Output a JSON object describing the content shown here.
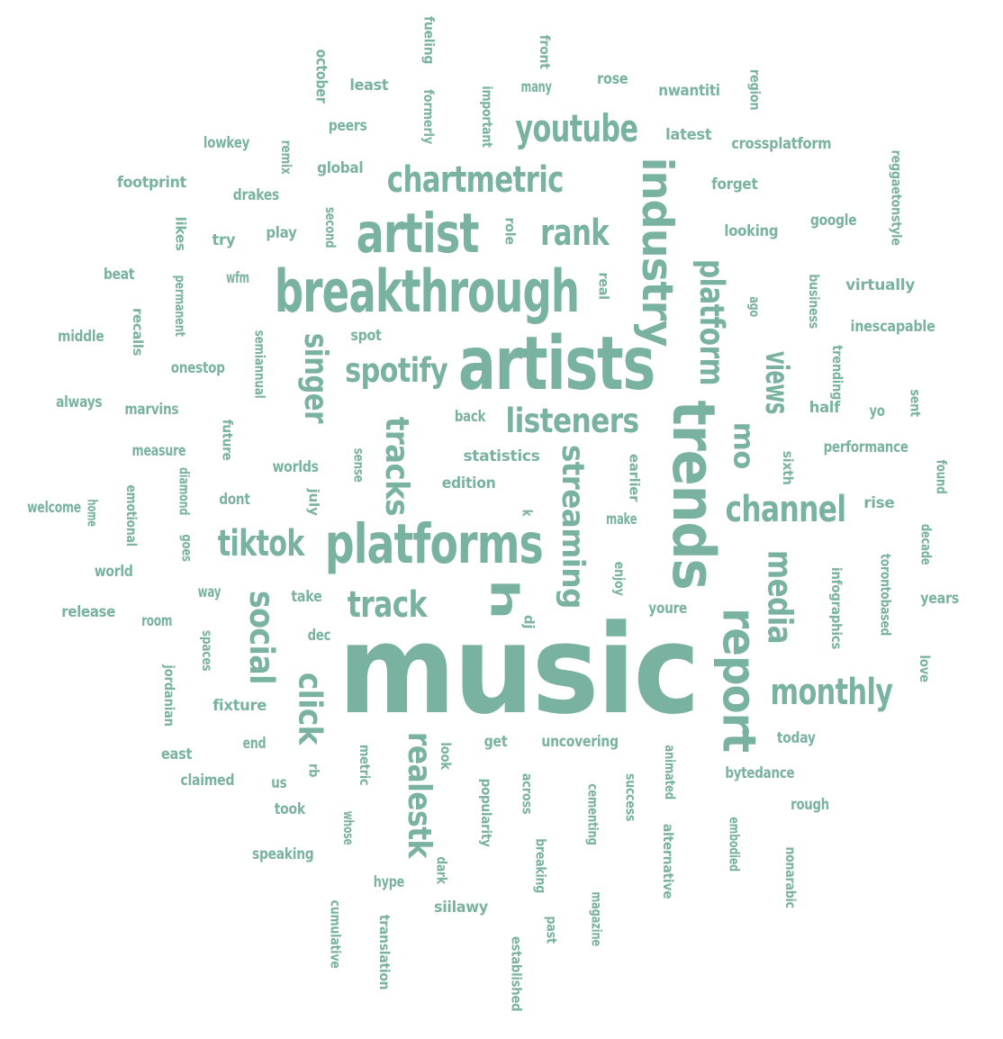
{
  "wordcloud": {
    "color": "#7ab2a1",
    "words": [
      {
        "text": "music",
        "weight": 150,
        "orientation": "horizontal"
      },
      {
        "text": "artists",
        "weight": 78,
        "orientation": "horizontal"
      },
      {
        "text": "breakthrough",
        "weight": 62,
        "orientation": "horizontal"
      },
      {
        "text": "trends",
        "weight": 62,
        "orientation": "vertical"
      },
      {
        "text": "platforms",
        "weight": 58,
        "orientation": "horizontal"
      },
      {
        "text": "artist",
        "weight": 58,
        "orientation": "horizontal"
      },
      {
        "text": "industry",
        "weight": 55,
        "orientation": "vertical"
      },
      {
        "text": "report",
        "weight": 48,
        "orientation": "vertical"
      },
      {
        "text": "streaming",
        "weight": 42,
        "orientation": "vertical"
      },
      {
        "text": "h",
        "weight": 42,
        "orientation": "vertical"
      },
      {
        "text": "realestk",
        "weight": 40,
        "orientation": "vertical"
      },
      {
        "text": "youtube",
        "weight": 40,
        "orientation": "horizontal"
      },
      {
        "text": "tracks",
        "weight": 40,
        "orientation": "vertical"
      },
      {
        "text": "chartmetric",
        "weight": 38,
        "orientation": "horizontal"
      },
      {
        "text": "channel",
        "weight": 38,
        "orientation": "horizontal"
      },
      {
        "text": "monthly",
        "weight": 38,
        "orientation": "horizontal"
      },
      {
        "text": "tiktok",
        "weight": 38,
        "orientation": "horizontal"
      },
      {
        "text": "track",
        "weight": 38,
        "orientation": "horizontal"
      },
      {
        "text": "media",
        "weight": 38,
        "orientation": "vertical"
      },
      {
        "text": "platform",
        "weight": 36,
        "orientation": "vertical"
      },
      {
        "text": "rank",
        "weight": 36,
        "orientation": "horizontal"
      },
      {
        "text": "listeners",
        "weight": 36,
        "orientation": "horizontal"
      },
      {
        "text": "spotify",
        "weight": 36,
        "orientation": "horizontal"
      },
      {
        "text": "singer",
        "weight": 36,
        "orientation": "vertical"
      },
      {
        "text": "social",
        "weight": 36,
        "orientation": "vertical"
      },
      {
        "text": "click",
        "weight": 36,
        "orientation": "vertical"
      },
      {
        "text": "views",
        "weight": 36,
        "orientation": "vertical"
      },
      {
        "text": "mo",
        "weight": 32,
        "orientation": "vertical"
      },
      {
        "text": "october",
        "weight": 18,
        "orientation": "vertical"
      },
      {
        "text": "fueling",
        "weight": 16,
        "orientation": "vertical"
      },
      {
        "text": "front",
        "weight": 16,
        "orientation": "vertical"
      },
      {
        "text": "least",
        "weight": 18,
        "orientation": "horizontal"
      },
      {
        "text": "formerly",
        "weight": 16,
        "orientation": "vertical"
      },
      {
        "text": "important",
        "weight": 16,
        "orientation": "vertical"
      },
      {
        "text": "many",
        "weight": 18,
        "orientation": "horizontal"
      },
      {
        "text": "rose",
        "weight": 18,
        "orientation": "horizontal"
      },
      {
        "text": "nwantiti",
        "weight": 18,
        "orientation": "horizontal"
      },
      {
        "text": "region",
        "weight": 16,
        "orientation": "vertical"
      },
      {
        "text": "peers",
        "weight": 18,
        "orientation": "horizontal"
      },
      {
        "text": "latest",
        "weight": 18,
        "orientation": "horizontal"
      },
      {
        "text": "lowkey",
        "weight": 18,
        "orientation": "horizontal"
      },
      {
        "text": "remix",
        "weight": 16,
        "orientation": "vertical"
      },
      {
        "text": "crossplatform",
        "weight": 18,
        "orientation": "horizontal"
      },
      {
        "text": "reggaetonstyle",
        "weight": 16,
        "orientation": "vertical"
      },
      {
        "text": "global",
        "weight": 18,
        "orientation": "horizontal"
      },
      {
        "text": "footprint",
        "weight": 18,
        "orientation": "horizontal"
      },
      {
        "text": "forget",
        "weight": 18,
        "orientation": "horizontal"
      },
      {
        "text": "drakes",
        "weight": 18,
        "orientation": "horizontal"
      },
      {
        "text": "second",
        "weight": 16,
        "orientation": "vertical"
      },
      {
        "text": "role",
        "weight": 16,
        "orientation": "vertical"
      },
      {
        "text": "google",
        "weight": 18,
        "orientation": "horizontal"
      },
      {
        "text": "likes",
        "weight": 16,
        "orientation": "vertical"
      },
      {
        "text": "try",
        "weight": 18,
        "orientation": "horizontal"
      },
      {
        "text": "play",
        "weight": 18,
        "orientation": "horizontal"
      },
      {
        "text": "looking",
        "weight": 18,
        "orientation": "horizontal"
      },
      {
        "text": "beat",
        "weight": 18,
        "orientation": "horizontal"
      },
      {
        "text": "permanent",
        "weight": 16,
        "orientation": "vertical"
      },
      {
        "text": "wfm",
        "weight": 18,
        "orientation": "horizontal"
      },
      {
        "text": "real",
        "weight": 16,
        "orientation": "vertical"
      },
      {
        "text": "business",
        "weight": 16,
        "orientation": "vertical"
      },
      {
        "text": "virtually",
        "weight": 18,
        "orientation": "horizontal"
      },
      {
        "text": "recalls",
        "weight": 16,
        "orientation": "vertical"
      },
      {
        "text": "ago",
        "weight": 16,
        "orientation": "vertical"
      },
      {
        "text": "middle",
        "weight": 18,
        "orientation": "horizontal"
      },
      {
        "text": "semiannual",
        "weight": 16,
        "orientation": "vertical"
      },
      {
        "text": "spot",
        "weight": 18,
        "orientation": "horizontal"
      },
      {
        "text": "inescapable",
        "weight": 18,
        "orientation": "horizontal"
      },
      {
        "text": "onestop",
        "weight": 18,
        "orientation": "horizontal"
      },
      {
        "text": "always",
        "weight": 18,
        "orientation": "horizontal"
      },
      {
        "text": "trending",
        "weight": 16,
        "orientation": "vertical"
      },
      {
        "text": "marvins",
        "weight": 18,
        "orientation": "horizontal"
      },
      {
        "text": "back",
        "weight": 18,
        "orientation": "horizontal"
      },
      {
        "text": "half",
        "weight": 18,
        "orientation": "horizontal"
      },
      {
        "text": "yo",
        "weight": 18,
        "orientation": "horizontal"
      },
      {
        "text": "sent",
        "weight": 16,
        "orientation": "vertical"
      },
      {
        "text": "future",
        "weight": 16,
        "orientation": "vertical"
      },
      {
        "text": "measure",
        "weight": 18,
        "orientation": "horizontal"
      },
      {
        "text": "statistics",
        "weight": 18,
        "orientation": "horizontal"
      },
      {
        "text": "performance",
        "weight": 18,
        "orientation": "horizontal"
      },
      {
        "text": "worlds",
        "weight": 18,
        "orientation": "horizontal"
      },
      {
        "text": "sense",
        "weight": 16,
        "orientation": "vertical"
      },
      {
        "text": "sixth",
        "weight": 16,
        "orientation": "vertical"
      },
      {
        "text": "earlier",
        "weight": 16,
        "orientation": "vertical"
      },
      {
        "text": "found",
        "weight": 16,
        "orientation": "vertical"
      },
      {
        "text": "welcome",
        "weight": 18,
        "orientation": "horizontal"
      },
      {
        "text": "home",
        "weight": 16,
        "orientation": "vertical"
      },
      {
        "text": "emotional",
        "weight": 16,
        "orientation": "vertical"
      },
      {
        "text": "diamond",
        "weight": 16,
        "orientation": "vertical"
      },
      {
        "text": "dont",
        "weight": 18,
        "orientation": "horizontal"
      },
      {
        "text": "july",
        "weight": 16,
        "orientation": "vertical"
      },
      {
        "text": "edition",
        "weight": 18,
        "orientation": "horizontal"
      },
      {
        "text": "k",
        "weight": 16,
        "orientation": "vertical"
      },
      {
        "text": "make",
        "weight": 18,
        "orientation": "horizontal"
      },
      {
        "text": "rise",
        "weight": 18,
        "orientation": "horizontal"
      },
      {
        "text": "decade",
        "weight": 16,
        "orientation": "vertical"
      },
      {
        "text": "goes",
        "weight": 16,
        "orientation": "vertical"
      },
      {
        "text": "torontobased",
        "weight": 16,
        "orientation": "vertical"
      },
      {
        "text": "world",
        "weight": 18,
        "orientation": "horizontal"
      },
      {
        "text": "enjoy",
        "weight": 16,
        "orientation": "vertical"
      },
      {
        "text": "infographics",
        "weight": 16,
        "orientation": "vertical"
      },
      {
        "text": "way",
        "weight": 18,
        "orientation": "horizontal"
      },
      {
        "text": "take",
        "weight": 18,
        "orientation": "horizontal"
      },
      {
        "text": "years",
        "weight": 18,
        "orientation": "horizontal"
      },
      {
        "text": "release",
        "weight": 18,
        "orientation": "horizontal"
      },
      {
        "text": "youre",
        "weight": 18,
        "orientation": "horizontal"
      },
      {
        "text": "room",
        "weight": 18,
        "orientation": "horizontal"
      },
      {
        "text": "dj",
        "weight": 16,
        "orientation": "vertical"
      },
      {
        "text": "spaces",
        "weight": 16,
        "orientation": "vertical"
      },
      {
        "text": "dec",
        "weight": 18,
        "orientation": "horizontal"
      },
      {
        "text": "love",
        "weight": 16,
        "orientation": "vertical"
      },
      {
        "text": "jordanian",
        "weight": 16,
        "orientation": "vertical"
      },
      {
        "text": "fixture",
        "weight": 18,
        "orientation": "horizontal"
      },
      {
        "text": "today",
        "weight": 18,
        "orientation": "horizontal"
      },
      {
        "text": "end",
        "weight": 18,
        "orientation": "horizontal"
      },
      {
        "text": "get",
        "weight": 18,
        "orientation": "horizontal"
      },
      {
        "text": "uncovering",
        "weight": 18,
        "orientation": "horizontal"
      },
      {
        "text": "east",
        "weight": 18,
        "orientation": "horizontal"
      },
      {
        "text": "metric",
        "weight": 16,
        "orientation": "vertical"
      },
      {
        "text": "look",
        "weight": 16,
        "orientation": "vertical"
      },
      {
        "text": "animated",
        "weight": 16,
        "orientation": "vertical"
      },
      {
        "text": "bytedance",
        "weight": 18,
        "orientation": "horizontal"
      },
      {
        "text": "claimed",
        "weight": 18,
        "orientation": "horizontal"
      },
      {
        "text": "rb",
        "weight": 16,
        "orientation": "vertical"
      },
      {
        "text": "us",
        "weight": 18,
        "orientation": "horizontal"
      },
      {
        "text": "popularity",
        "weight": 16,
        "orientation": "vertical"
      },
      {
        "text": "across",
        "weight": 16,
        "orientation": "vertical"
      },
      {
        "text": "cementing",
        "weight": 16,
        "orientation": "vertical"
      },
      {
        "text": "success",
        "weight": 16,
        "orientation": "vertical"
      },
      {
        "text": "rough",
        "weight": 18,
        "orientation": "horizontal"
      },
      {
        "text": "took",
        "weight": 18,
        "orientation": "horizontal"
      },
      {
        "text": "embodied",
        "weight": 16,
        "orientation": "vertical"
      },
      {
        "text": "whose",
        "weight": 16,
        "orientation": "vertical"
      },
      {
        "text": "alternative",
        "weight": 16,
        "orientation": "vertical"
      },
      {
        "text": "breaking",
        "weight": 16,
        "orientation": "vertical"
      },
      {
        "text": "speaking",
        "weight": 18,
        "orientation": "horizontal"
      },
      {
        "text": "nonarabic",
        "weight": 16,
        "orientation": "vertical"
      },
      {
        "text": "dark",
        "weight": 16,
        "orientation": "vertical"
      },
      {
        "text": "hype",
        "weight": 18,
        "orientation": "horizontal"
      },
      {
        "text": "magazine",
        "weight": 16,
        "orientation": "vertical"
      },
      {
        "text": "siilawy",
        "weight": 18,
        "orientation": "horizontal"
      },
      {
        "text": "cumulative",
        "weight": 16,
        "orientation": "vertical"
      },
      {
        "text": "translation",
        "weight": 16,
        "orientation": "vertical"
      },
      {
        "text": "past",
        "weight": 16,
        "orientation": "vertical"
      },
      {
        "text": "established",
        "weight": 16,
        "orientation": "vertical"
      }
    ]
  }
}
